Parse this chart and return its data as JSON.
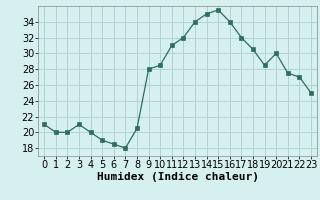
{
  "x": [
    0,
    1,
    2,
    3,
    4,
    5,
    6,
    7,
    8,
    9,
    10,
    11,
    12,
    13,
    14,
    15,
    16,
    17,
    18,
    19,
    20,
    21,
    22,
    23
  ],
  "y": [
    21,
    20,
    20,
    21,
    20,
    19,
    18.5,
    18,
    20.5,
    28,
    28.5,
    31,
    32,
    34,
    35,
    35.5,
    34,
    32,
    30.5,
    28.5,
    30,
    27.5,
    27,
    25
  ],
  "line_color": "#2d6e5e",
  "marker_color": "#2d6e5e",
  "bg_color": "#d6f0ef",
  "grid_color": "#aed4d3",
  "xlabel": "Humidex (Indice chaleur)",
  "ylim": [
    17,
    36
  ],
  "xlim": [
    -0.5,
    23.5
  ],
  "yticks": [
    18,
    20,
    22,
    24,
    26,
    28,
    30,
    32,
    34
  ],
  "xticks": [
    0,
    1,
    2,
    3,
    4,
    5,
    6,
    7,
    8,
    9,
    10,
    11,
    12,
    13,
    14,
    15,
    16,
    17,
    18,
    19,
    20,
    21,
    22,
    23
  ],
  "xlabel_fontsize": 8,
  "tick_fontsize": 7
}
